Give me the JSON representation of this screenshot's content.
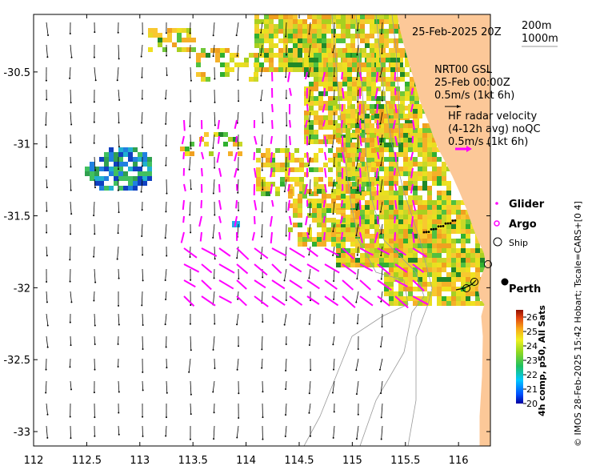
{
  "map": {
    "lon_range": [
      112,
      116.3
    ],
    "lat_range": [
      -33.1,
      -30.1
    ],
    "lon_ticks": [
      {
        "value": 112,
        "label": "112"
      },
      {
        "value": 112.5,
        "label": "112.5"
      },
      {
        "value": 113,
        "label": "113"
      },
      {
        "value": 113.5,
        "label": "113.5"
      },
      {
        "value": 114,
        "label": "114"
      },
      {
        "value": 114.5,
        "label": "114.5"
      },
      {
        "value": 115,
        "label": "115"
      },
      {
        "value": 115.5,
        "label": "115.5"
      },
      {
        "value": 116,
        "label": "116"
      }
    ],
    "lat_ticks": [
      {
        "value": -30.5,
        "label": "-30.5"
      },
      {
        "value": -31,
        "label": "-31"
      },
      {
        "value": -31.5,
        "label": "-31.5"
      },
      {
        "value": -32,
        "label": "-32"
      },
      {
        "value": -32.5,
        "label": "-32.5"
      },
      {
        "value": -33,
        "label": "-33"
      }
    ],
    "colors": {
      "land": "#fcc898",
      "ocean": "#ffffff",
      "frame": "#000000",
      "model_vectors": "#000000",
      "radar_vectors": "#ff00ff",
      "contours": "#999999"
    }
  },
  "header": {
    "datetime": "25-Feb-2025 20Z",
    "depth_200": "200m",
    "depth_1000": "1000m"
  },
  "model_info": {
    "line1": "NRT00 GSL",
    "line2": "25-Feb 00:00Z",
    "scale": "0.5m/s (1kt 6h)"
  },
  "radar_info": {
    "line1": "HF radar velocity",
    "line2": "(4-12h avg) noQC",
    "scale": "0.5m/s (1kt 6h)"
  },
  "legend": {
    "glider": "Glider",
    "argo": "Argo",
    "ship": "Ship"
  },
  "city": {
    "name": "Perth",
    "lon": 115.86,
    "lat": -31.95
  },
  "colorbar": {
    "title": "4h comp, p50, All Sats",
    "min": 20,
    "max": 26.5,
    "ticks": [
      "20",
      "21",
      "22",
      "23",
      "24",
      "25",
      "26"
    ]
  },
  "credit": "© IMOS 28-Feb-2025 15:42 Hobart; Tscale=CARS+[0 4]"
}
